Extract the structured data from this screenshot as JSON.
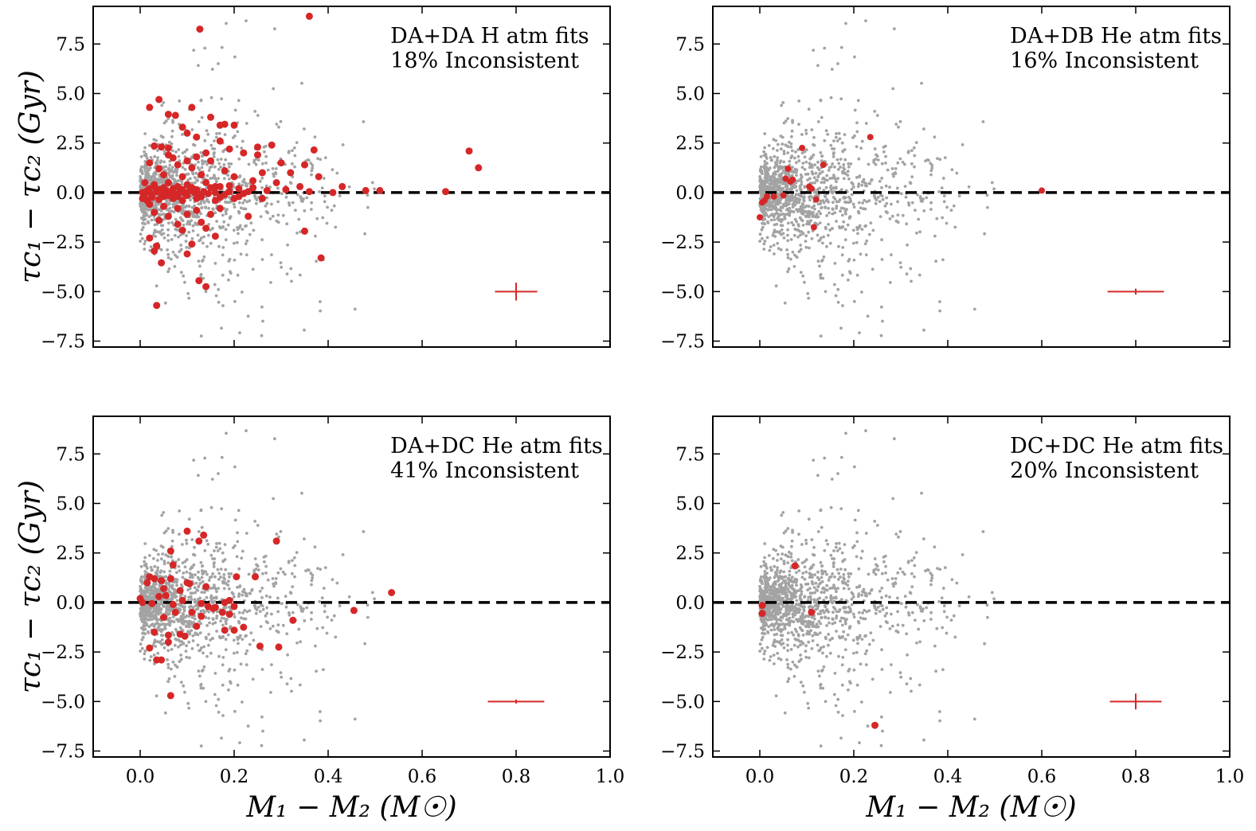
{
  "figure": {
    "xlabel": "M₁ − M₂ (M☉)",
    "ylabel": "τc₁ − τc₂ (Gyr)"
  },
  "colors": {
    "background_points": "#a3a3a3",
    "highlight_points": "#d62728",
    "zero_line": "#000000"
  },
  "chart_data": [
    {
      "type": "scatter",
      "panel": "top-left",
      "annotation": [
        "DA+DA H atm fits",
        "18% Inconsistent"
      ],
      "xlim": [
        -0.1,
        1.0
      ],
      "ylim": [
        -7.8,
        9.4
      ],
      "xticks": [
        "0.0",
        "0.2",
        "0.4",
        "0.6",
        "0.8",
        "1.0"
      ],
      "yticks": [
        "7.5",
        "5.0",
        "2.5",
        "0.0",
        "−2.5",
        "−5.0",
        "−7.5"
      ],
      "show_xtick_labels": false,
      "show_ylabel": true,
      "show_xlabel": false,
      "grid": false,
      "zero_line": 0,
      "errorbar": {
        "x": 0.8,
        "y": -5.0,
        "xerr": 0.045,
        "yerr": 0.45
      },
      "series": [
        {
          "role": "inconsistent",
          "points": [
            [
              0.127,
              8.25
            ],
            [
              0.36,
              8.9
            ],
            [
              0.04,
              4.7
            ],
            [
              0.02,
              4.3
            ],
            [
              0.11,
              4.3
            ],
            [
              0.06,
              3.95
            ],
            [
              0.075,
              3.9
            ],
            [
              0.15,
              3.8
            ],
            [
              0.17,
              3.4
            ],
            [
              0.18,
              3.45
            ],
            [
              0.2,
              3.4
            ],
            [
              0.09,
              3.3
            ],
            [
              0.1,
              3.0
            ],
            [
              0.12,
              2.8
            ],
            [
              0.17,
              2.6
            ],
            [
              0.03,
              2.35
            ],
            [
              0.045,
              2.3
            ],
            [
              0.06,
              2.25
            ],
            [
              0.25,
              2.3
            ],
            [
              0.28,
              2.4
            ],
            [
              0.37,
              2.15
            ],
            [
              0.7,
              2.1
            ],
            [
              0.14,
              2.0
            ],
            [
              0.19,
              2.2
            ],
            [
              0.22,
              2.0
            ],
            [
              0.25,
              1.9
            ],
            [
              0.06,
              1.9
            ],
            [
              0.07,
              1.75
            ],
            [
              0.1,
              1.6
            ],
            [
              0.12,
              1.8
            ],
            [
              0.15,
              1.6
            ],
            [
              0.3,
              1.5
            ],
            [
              0.35,
              1.4
            ],
            [
              0.72,
              1.25
            ],
            [
              0.02,
              1.5
            ],
            [
              0.04,
              1.2
            ],
            [
              0.08,
              1.4
            ],
            [
              0.11,
              1.25
            ],
            [
              0.18,
              1.1
            ],
            [
              0.26,
              1.0
            ],
            [
              0.32,
              1.0
            ],
            [
              0.38,
              0.8
            ],
            [
              0.05,
              0.9
            ],
            [
              0.09,
              0.8
            ],
            [
              0.13,
              0.9
            ],
            [
              0.2,
              0.8
            ],
            [
              0.24,
              0.6
            ],
            [
              0.29,
              0.5
            ],
            [
              0.34,
              0.3
            ],
            [
              0.43,
              0.3
            ],
            [
              0.01,
              0.5
            ],
            [
              0.03,
              0.4
            ],
            [
              0.06,
              0.5
            ],
            [
              0.08,
              0.3
            ],
            [
              0.1,
              0.4
            ],
            [
              0.14,
              0.5
            ],
            [
              0.17,
              0.3
            ],
            [
              0.21,
              0.2
            ],
            [
              0.27,
              0.1
            ],
            [
              0.31,
              0.15
            ],
            [
              0.36,
              0.05
            ],
            [
              0.41,
              0.0
            ],
            [
              0.48,
              0.1
            ],
            [
              0.51,
              0.1
            ],
            [
              0.65,
              0.05
            ],
            [
              0.005,
              0.0
            ],
            [
              0.015,
              0.1
            ],
            [
              0.025,
              -0.1
            ],
            [
              0.035,
              0.05
            ],
            [
              0.045,
              -0.05
            ],
            [
              0.055,
              0.1
            ],
            [
              0.065,
              0.0
            ],
            [
              0.075,
              -0.1
            ],
            [
              0.085,
              0.05
            ],
            [
              0.095,
              -0.05
            ],
            [
              0.105,
              0.1
            ],
            [
              0.115,
              0.0
            ],
            [
              0.125,
              -0.1
            ],
            [
              0.135,
              0.05
            ],
            [
              0.145,
              -0.05
            ],
            [
              0.16,
              0.0
            ],
            [
              0.18,
              -0.1
            ],
            [
              0.19,
              0.05
            ],
            [
              0.22,
              -0.05
            ],
            [
              0.23,
              0.05
            ],
            [
              0.005,
              -0.3
            ],
            [
              0.015,
              -0.4
            ],
            [
              0.025,
              -0.25
            ],
            [
              0.04,
              -0.35
            ],
            [
              0.05,
              -0.2
            ],
            [
              0.07,
              -0.3
            ],
            [
              0.09,
              -0.4
            ],
            [
              0.12,
              -0.3
            ],
            [
              0.16,
              -0.4
            ],
            [
              0.2,
              -0.3
            ],
            [
              0.02,
              -0.6
            ],
            [
              0.05,
              -0.7
            ],
            [
              0.08,
              -0.8
            ],
            [
              0.12,
              -0.9
            ],
            [
              0.17,
              -0.8
            ],
            [
              0.03,
              -1.0
            ],
            [
              0.06,
              -1.2
            ],
            [
              0.1,
              -1.1
            ],
            [
              0.15,
              -1.1
            ],
            [
              0.23,
              -1.2
            ],
            [
              0.04,
              -1.4
            ],
            [
              0.08,
              -1.6
            ],
            [
              0.13,
              -1.5
            ],
            [
              0.09,
              -1.9
            ],
            [
              0.14,
              -1.8
            ],
            [
              0.16,
              -2.2
            ],
            [
              0.02,
              -2.3
            ],
            [
              0.35,
              -1.95
            ],
            [
              0.035,
              -2.7
            ],
            [
              0.03,
              -2.95
            ],
            [
              0.11,
              -2.6
            ],
            [
              0.1,
              -3.1
            ],
            [
              0.045,
              -3.55
            ],
            [
              0.385,
              -3.3
            ],
            [
              0.125,
              -4.45
            ],
            [
              0.14,
              -4.75
            ],
            [
              0.035,
              -5.7
            ],
            [
              0.01,
              -0.1
            ],
            [
              0.02,
              0.2
            ],
            [
              0.03,
              0.3
            ],
            [
              0.04,
              0.15
            ],
            [
              0.05,
              0.25
            ],
            [
              0.06,
              -0.15
            ],
            [
              0.07,
              0.2
            ],
            [
              0.08,
              -0.2
            ],
            [
              0.09,
              0.15
            ],
            [
              0.1,
              -0.15
            ],
            [
              0.11,
              0.25
            ],
            [
              0.12,
              0.15
            ],
            [
              0.13,
              -0.2
            ],
            [
              0.15,
              0.25
            ],
            [
              0.16,
              0.3
            ],
            [
              0.17,
              -0.25
            ],
            [
              0.19,
              0.35
            ],
            [
              0.21,
              -0.2
            ],
            [
              0.24,
              0.25
            ],
            [
              0.26,
              -0.3
            ]
          ],
          "marker_size": 4.5
        }
      ]
    },
    {
      "type": "scatter",
      "panel": "top-right",
      "annotation": [
        "DA+DB He atm fits",
        "16% Inconsistent"
      ],
      "xlim": [
        -0.1,
        1.0
      ],
      "ylim": [
        -7.8,
        9.4
      ],
      "xticks": [
        "0.0",
        "0.2",
        "0.4",
        "0.6",
        "0.8",
        "1.0"
      ],
      "yticks": [
        "7.5",
        "5.0",
        "2.5",
        "0.0",
        "−2.5",
        "−5.0",
        "−7.5"
      ],
      "show_xtick_labels": false,
      "show_ylabel": false,
      "show_xlabel": false,
      "grid": false,
      "zero_line": 0,
      "errorbar": {
        "x": 0.8,
        "y": -5.0,
        "xerr": 0.06,
        "yerr": 0.15
      },
      "series": [
        {
          "role": "inconsistent",
          "points": [
            [
              0.235,
              2.8
            ],
            [
              0.09,
              2.25
            ],
            [
              0.135,
              1.4
            ],
            [
              0.06,
              1.2
            ],
            [
              0.055,
              0.7
            ],
            [
              0.07,
              0.65
            ],
            [
              0.065,
              0.55
            ],
            [
              0.105,
              0.3
            ],
            [
              0.11,
              0.2
            ],
            [
              0.6,
              0.1
            ],
            [
              0.015,
              -0.2
            ],
            [
              0.03,
              -0.2
            ],
            [
              0.05,
              -0.15
            ],
            [
              0.01,
              -0.4
            ],
            [
              0.12,
              -0.35
            ],
            [
              0.005,
              -0.5
            ],
            [
              0.115,
              -1.75
            ],
            [
              0.0,
              -1.25
            ]
          ],
          "marker_size": 4
        }
      ]
    },
    {
      "type": "scatter",
      "panel": "bottom-left",
      "annotation": [
        "DA+DC He atm fits",
        "41% Inconsistent"
      ],
      "xlim": [
        -0.1,
        1.0
      ],
      "ylim": [
        -7.8,
        9.4
      ],
      "xticks": [
        "0.0",
        "0.2",
        "0.4",
        "0.6",
        "0.8",
        "1.0"
      ],
      "yticks": [
        "7.5",
        "5.0",
        "2.5",
        "0.0",
        "−2.5",
        "−5.0",
        "−7.5"
      ],
      "show_xtick_labels": true,
      "show_ylabel": true,
      "show_xlabel": true,
      "grid": false,
      "zero_line": 0,
      "errorbar": {
        "x": 0.8,
        "y": -5.0,
        "xerr": 0.06,
        "yerr": 0.1
      },
      "series": [
        {
          "role": "inconsistent",
          "points": [
            [
              0.1,
              3.6
            ],
            [
              0.135,
              3.4
            ],
            [
              0.125,
              3.1
            ],
            [
              0.29,
              3.1
            ],
            [
              0.065,
              2.6
            ],
            [
              0.07,
              1.9
            ],
            [
              0.02,
              1.3
            ],
            [
              0.03,
              1.2
            ],
            [
              0.015,
              1.0
            ],
            [
              0.045,
              1.1
            ],
            [
              0.065,
              1.2
            ],
            [
              0.1,
              1.0
            ],
            [
              0.105,
              0.95
            ],
            [
              0.205,
              1.3
            ],
            [
              0.245,
              1.3
            ],
            [
              0.05,
              0.7
            ],
            [
              0.085,
              0.6
            ],
            [
              0.14,
              0.8
            ],
            [
              0.535,
              0.5
            ],
            [
              0.04,
              0.3
            ],
            [
              0.055,
              0.35
            ],
            [
              0.0,
              0.2
            ],
            [
              0.005,
              0.0
            ],
            [
              0.025,
              -0.05
            ],
            [
              0.07,
              -0.1
            ],
            [
              0.09,
              0.1
            ],
            [
              0.13,
              -0.05
            ],
            [
              0.18,
              0.0
            ],
            [
              0.19,
              0.1
            ],
            [
              0.145,
              -0.2
            ],
            [
              0.155,
              -0.3
            ],
            [
              0.16,
              -0.25
            ],
            [
              0.2,
              -0.2
            ],
            [
              0.11,
              -0.5
            ],
            [
              0.175,
              -0.5
            ],
            [
              0.13,
              -0.7
            ],
            [
              0.05,
              -0.75
            ],
            [
              0.075,
              -0.5
            ],
            [
              0.455,
              -0.4
            ],
            [
              0.19,
              -0.6
            ],
            [
              0.325,
              -0.9
            ],
            [
              0.12,
              -1.2
            ],
            [
              0.22,
              -1.25
            ],
            [
              0.2,
              -1.4
            ],
            [
              0.18,
              -1.4
            ],
            [
              0.085,
              -1.6
            ],
            [
              0.095,
              -1.7
            ],
            [
              0.06,
              -1.65
            ],
            [
              0.03,
              -1.5
            ],
            [
              0.06,
              -2.0
            ],
            [
              0.255,
              -2.2
            ],
            [
              0.295,
              -2.25
            ],
            [
              0.02,
              -2.3
            ],
            [
              0.035,
              -2.9
            ],
            [
              0.045,
              -2.9
            ],
            [
              0.065,
              -4.7
            ]
          ],
          "marker_size": 4.5
        }
      ]
    },
    {
      "type": "scatter",
      "panel": "bottom-right",
      "annotation": [
        "DC+DC He atm fits",
        "20% Inconsistent"
      ],
      "xlim": [
        -0.1,
        1.0
      ],
      "ylim": [
        -7.8,
        9.4
      ],
      "xticks": [
        "0.0",
        "0.2",
        "0.4",
        "0.6",
        "0.8",
        "1.0"
      ],
      "yticks": [
        "7.5",
        "5.0",
        "2.5",
        "0.0",
        "−2.5",
        "−5.0",
        "−7.5"
      ],
      "show_xtick_labels": true,
      "show_ylabel": false,
      "show_xlabel": true,
      "grid": false,
      "zero_line": 0,
      "errorbar": {
        "x": 0.8,
        "y": -5.0,
        "xerr": 0.055,
        "yerr": 0.4
      },
      "series": [
        {
          "role": "inconsistent",
          "points": [
            [
              0.075,
              1.85
            ],
            [
              0.005,
              -0.15
            ],
            [
              0.005,
              -0.55
            ],
            [
              0.11,
              -0.5
            ],
            [
              0.245,
              -6.2
            ]
          ],
          "marker_size": 4.5
        }
      ]
    }
  ],
  "background_sample": {
    "count": 1300,
    "note_values_in_data_units": true
  }
}
